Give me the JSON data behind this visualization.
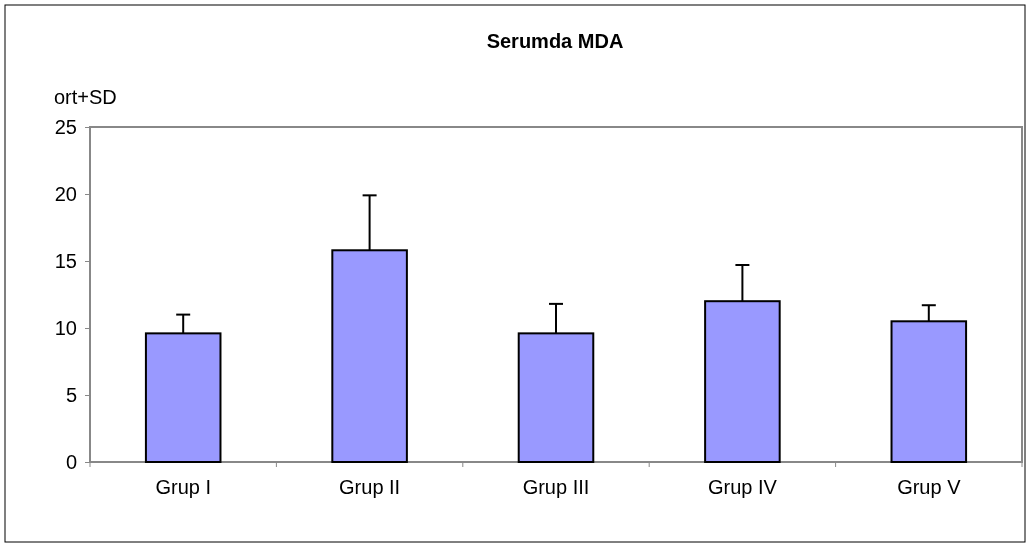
{
  "chart_data": {
    "type": "bar",
    "title": "Serumda MDA",
    "ylabel": "ort+SD",
    "categories": [
      "Grup I",
      "Grup II",
      "Grup III",
      "Grup IV",
      "Grup V"
    ],
    "values": [
      9.6,
      15.8,
      9.6,
      12.0,
      10.5
    ],
    "errors": [
      1.4,
      4.1,
      2.2,
      2.7,
      1.2
    ],
    "color": "#9999ff",
    "ylim": [
      0,
      25
    ],
    "yticks": [
      0,
      5,
      10,
      15,
      20,
      25
    ],
    "grid": false
  }
}
